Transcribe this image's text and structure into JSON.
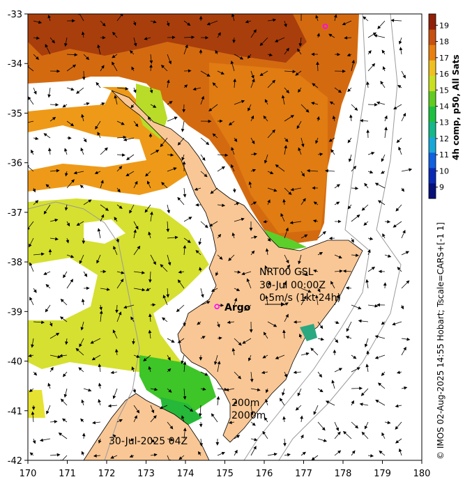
{
  "map": {
    "x_ticks": [
      "170",
      "171",
      "172",
      "173",
      "174",
      "175",
      "176",
      "177",
      "178",
      "179",
      "180"
    ],
    "y_ticks": [
      "-33",
      "-34",
      "-35",
      "-36",
      "-37",
      "-38",
      "-39",
      "-40",
      "-41",
      "-42"
    ],
    "lon_range": [
      170,
      180
    ],
    "lat_range": [
      -42,
      -33
    ],
    "product_label": "NRT00 GSL",
    "time_label": "30-Jul 00:00Z",
    "vector_scale_label": "0.5m/s (1kt 24h)",
    "argo_label": "Argo",
    "isobath_200_label": "200m",
    "isobath_2000_label": "2000m",
    "date_label": "30-Jul-2025 04Z",
    "credit_text": "© IMOS 02-Aug-2025 14:55 Hobart; Tscale=CARS+[-1 1]",
    "argo_floats": [
      {
        "lon": 174.8,
        "lat": -38.9
      },
      {
        "lon": 177.55,
        "lat": -33.25
      }
    ],
    "argo_color": "#ff00ff",
    "land_color": "#f9c795"
  },
  "colorbar": {
    "title": "4h comp, p50, All Sats",
    "ticks": [
      "9",
      "10",
      "11",
      "12",
      "13",
      "14",
      "15",
      "16",
      "17",
      "18",
      "19"
    ],
    "range": [
      8.3,
      19.7
    ],
    "colors": [
      "#08107a",
      "#0a2ab5",
      "#1060e0",
      "#18a8d8",
      "#15b888",
      "#1ec040",
      "#60cc20",
      "#c8e020",
      "#f0c020",
      "#e88010",
      "#c85010",
      "#902008"
    ]
  }
}
